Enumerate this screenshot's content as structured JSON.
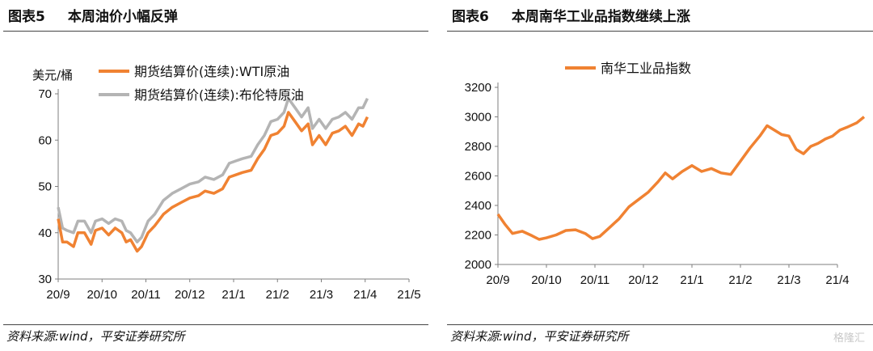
{
  "left": {
    "fig_label": "图表5",
    "fig_title": "本周油价小幅反弹",
    "source": "资料来源:wind，平安证券研究所"
  },
  "right": {
    "fig_label": "图表6",
    "fig_title": "本周南华工业品指数继续上涨",
    "source": "资料来源:wind，平安证券研究所"
  },
  "watermark": "格隆汇",
  "colors": {
    "orange": "#F08232",
    "gray": "#B4B4B4",
    "axis": "#7f7f7f"
  },
  "chart_data": [
    {
      "type": "line",
      "title": "",
      "unit_label": "美元/桶",
      "ylim": [
        30,
        70
      ],
      "yticks": [
        30,
        40,
        50,
        60,
        70
      ],
      "categories": [
        "20/9",
        "20/10",
        "20/11",
        "20/12",
        "21/1",
        "21/2",
        "21/3",
        "21/4",
        "21/5"
      ],
      "legend_position": "top-left",
      "series": [
        {
          "name": "期货结算价(连续):WTI原油",
          "color": "#F08232",
          "points": [
            [
              0.0,
              43
            ],
            [
              0.1,
              38
            ],
            [
              0.2,
              38
            ],
            [
              0.35,
              37
            ],
            [
              0.45,
              40
            ],
            [
              0.6,
              40
            ],
            [
              0.75,
              37.5
            ],
            [
              0.85,
              40.5
            ],
            [
              1.0,
              41
            ],
            [
              1.15,
              39.5
            ],
            [
              1.3,
              41
            ],
            [
              1.45,
              40
            ],
            [
              1.55,
              38
            ],
            [
              1.65,
              38.5
            ],
            [
              1.8,
              36
            ],
            [
              1.9,
              37
            ],
            [
              2.05,
              40
            ],
            [
              2.2,
              41.5
            ],
            [
              2.4,
              44
            ],
            [
              2.6,
              45.5
            ],
            [
              2.8,
              46.5
            ],
            [
              3.0,
              47.5
            ],
            [
              3.2,
              48
            ],
            [
              3.35,
              49
            ],
            [
              3.55,
              48.5
            ],
            [
              3.75,
              49.5
            ],
            [
              3.9,
              52
            ],
            [
              4.05,
              52.5
            ],
            [
              4.2,
              53
            ],
            [
              4.4,
              53.5
            ],
            [
              4.55,
              56
            ],
            [
              4.7,
              58
            ],
            [
              4.85,
              61
            ],
            [
              5.0,
              61.5
            ],
            [
              5.15,
              63
            ],
            [
              5.25,
              66
            ],
            [
              5.4,
              64
            ],
            [
              5.55,
              62
            ],
            [
              5.7,
              63.5
            ],
            [
              5.8,
              59
            ],
            [
              5.95,
              61
            ],
            [
              6.1,
              59
            ],
            [
              6.25,
              61.5
            ],
            [
              6.4,
              62
            ],
            [
              6.55,
              63
            ],
            [
              6.7,
              61
            ],
            [
              6.85,
              63.5
            ],
            [
              6.95,
              63
            ],
            [
              7.05,
              65
            ]
          ]
        },
        {
          "name": "期货结算价(连续):布伦特原油",
          "color": "#B4B4B4",
          "points": [
            [
              0.0,
              45.5
            ],
            [
              0.1,
              41
            ],
            [
              0.2,
              40.5
            ],
            [
              0.35,
              40
            ],
            [
              0.45,
              42.5
            ],
            [
              0.6,
              42.5
            ],
            [
              0.75,
              40
            ],
            [
              0.85,
              42.5
            ],
            [
              1.0,
              43
            ],
            [
              1.15,
              42
            ],
            [
              1.3,
              43
            ],
            [
              1.45,
              42.5
            ],
            [
              1.55,
              40.5
            ],
            [
              1.65,
              40
            ],
            [
              1.8,
              38
            ],
            [
              1.9,
              39
            ],
            [
              2.05,
              42.5
            ],
            [
              2.2,
              44
            ],
            [
              2.4,
              47
            ],
            [
              2.6,
              48.5
            ],
            [
              2.8,
              49.5
            ],
            [
              3.0,
              50.5
            ],
            [
              3.2,
              51
            ],
            [
              3.35,
              52
            ],
            [
              3.55,
              51.5
            ],
            [
              3.75,
              52.5
            ],
            [
              3.9,
              55
            ],
            [
              4.05,
              55.5
            ],
            [
              4.2,
              56
            ],
            [
              4.4,
              56.5
            ],
            [
              4.55,
              59
            ],
            [
              4.7,
              61
            ],
            [
              4.85,
              64
            ],
            [
              5.0,
              64.5
            ],
            [
              5.15,
              66
            ],
            [
              5.25,
              69
            ],
            [
              5.4,
              67
            ],
            [
              5.55,
              65
            ],
            [
              5.7,
              67
            ],
            [
              5.8,
              62.5
            ],
            [
              5.95,
              64.5
            ],
            [
              6.1,
              62.5
            ],
            [
              6.25,
              64.5
            ],
            [
              6.4,
              65
            ],
            [
              6.55,
              66
            ],
            [
              6.7,
              64.5
            ],
            [
              6.85,
              67
            ],
            [
              6.95,
              67
            ],
            [
              7.05,
              69
            ]
          ]
        }
      ]
    },
    {
      "type": "line",
      "title": "",
      "ylim": [
        2000,
        3200
      ],
      "yticks": [
        2000,
        2200,
        2400,
        2600,
        2800,
        3000,
        3200
      ],
      "categories": [
        "20/9",
        "20/10",
        "20/11",
        "20/12",
        "21/1",
        "21/2",
        "21/3",
        "21/4"
      ],
      "legend_position": "top-center",
      "series": [
        {
          "name": "南华工业品指数",
          "color": "#F08232",
          "points": [
            [
              0.0,
              2340
            ],
            [
              0.15,
              2270
            ],
            [
              0.3,
              2210
            ],
            [
              0.5,
              2225
            ],
            [
              0.7,
              2195
            ],
            [
              0.85,
              2170
            ],
            [
              1.0,
              2180
            ],
            [
              1.2,
              2200
            ],
            [
              1.4,
              2230
            ],
            [
              1.6,
              2235
            ],
            [
              1.8,
              2210
            ],
            [
              1.95,
              2175
            ],
            [
              2.1,
              2190
            ],
            [
              2.3,
              2250
            ],
            [
              2.5,
              2310
            ],
            [
              2.7,
              2390
            ],
            [
              2.9,
              2440
            ],
            [
              3.1,
              2490
            ],
            [
              3.3,
              2560
            ],
            [
              3.45,
              2620
            ],
            [
              3.6,
              2580
            ],
            [
              3.8,
              2630
            ],
            [
              4.0,
              2670
            ],
            [
              4.2,
              2630
            ],
            [
              4.4,
              2650
            ],
            [
              4.6,
              2620
            ],
            [
              4.8,
              2610
            ],
            [
              5.0,
              2700
            ],
            [
              5.2,
              2790
            ],
            [
              5.4,
              2870
            ],
            [
              5.55,
              2940
            ],
            [
              5.7,
              2910
            ],
            [
              5.85,
              2880
            ],
            [
              6.0,
              2870
            ],
            [
              6.15,
              2780
            ],
            [
              6.3,
              2750
            ],
            [
              6.45,
              2800
            ],
            [
              6.6,
              2820
            ],
            [
              6.75,
              2850
            ],
            [
              6.9,
              2870
            ],
            [
              7.05,
              2910
            ],
            [
              7.2,
              2930
            ],
            [
              7.4,
              2960
            ],
            [
              7.55,
              3000
            ]
          ]
        }
      ]
    }
  ]
}
